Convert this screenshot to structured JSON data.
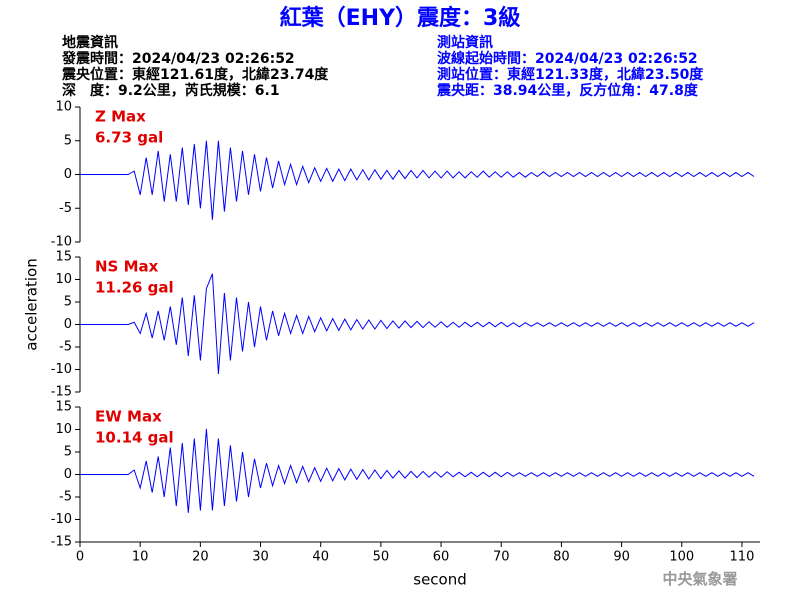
{
  "header": {
    "title": "紅葉（EHY）震度：3級",
    "left": [
      "地震資訊",
      "發震時間：2024/04/23 02:26:52",
      "震央位置：東經121.61度，北緯23.74度",
      "深　度：9.2公里，芮氏規模：6.1"
    ],
    "right": [
      "測站資訊",
      "波線起始時間：2024/04/23 02:26:52",
      "測站位置：東經121.33度，北緯23.50度",
      "震央距：38.94公里，反方位角：47.8度"
    ],
    "footer": "中央氣象署"
  },
  "chart_data": [
    {
      "type": "line",
      "color": "#0000ff",
      "annotation_color": "#e00000",
      "annotations": [
        "Z Max",
        "6.73 gal"
      ],
      "xlim": [
        0,
        113
      ],
      "ylim": [
        -10,
        10
      ],
      "yticks": [
        -10,
        -5,
        0,
        5,
        10
      ],
      "x": [
        0,
        1,
        2,
        3,
        4,
        5,
        6,
        7,
        8,
        9,
        10,
        11,
        12,
        13,
        14,
        15,
        16,
        17,
        18,
        19,
        20,
        21,
        22,
        23,
        24,
        25,
        26,
        27,
        28,
        29,
        30,
        31,
        32,
        33,
        34,
        35,
        36,
        37,
        38,
        39,
        40,
        41,
        42,
        43,
        44,
        45,
        46,
        47,
        48,
        49,
        50,
        51,
        52,
        53,
        54,
        55,
        56,
        57,
        58,
        59,
        60,
        61,
        62,
        63,
        64,
        65,
        66,
        67,
        68,
        69,
        70,
        71,
        72,
        73,
        74,
        75,
        76,
        77,
        78,
        79,
        80,
        81,
        82,
        83,
        84,
        85,
        86,
        87,
        88,
        89,
        90,
        91,
        92,
        93,
        94,
        95,
        96,
        97,
        98,
        99,
        100,
        101,
        102,
        103,
        104,
        105,
        106,
        107,
        108,
        109,
        110,
        111,
        112
      ],
      "values": [
        0,
        0,
        0,
        0,
        0,
        0,
        0,
        0,
        0,
        0.5,
        -3,
        2.5,
        -3,
        3.5,
        -4,
        3,
        -4,
        4,
        -4.5,
        4.5,
        -5,
        5,
        -6.7,
        5,
        -5.5,
        4,
        -4,
        3.5,
        -3,
        3,
        -2.5,
        2.5,
        -2,
        2,
        -1.5,
        1.5,
        -1.5,
        1.2,
        -1.2,
        1,
        -1,
        0.9,
        -1,
        0.8,
        -0.9,
        0.8,
        -0.8,
        0.7,
        -0.8,
        0.7,
        -0.7,
        0.6,
        -0.7,
        0.6,
        -0.6,
        0.6,
        -0.5,
        0.6,
        -0.5,
        0.5,
        -0.5,
        0.5,
        -0.5,
        0.4,
        -0.5,
        0.4,
        -0.4,
        0.5,
        -0.4,
        0.4,
        -0.4,
        0.4,
        -0.4,
        0.3,
        -0.4,
        0.3,
        -0.3,
        0.4,
        -0.3,
        0.3,
        -0.3,
        0.3,
        -0.3,
        0.3,
        -0.3,
        0.3,
        -0.3,
        0.3,
        -0.3,
        0.3,
        -0.3,
        0.3,
        -0.3,
        0.3,
        -0.3,
        0.3,
        -0.3,
        0.3,
        -0.3,
        0.3,
        -0.3,
        0.3,
        -0.3,
        0.3,
        -0.3,
        0.3,
        -0.3,
        0.3,
        -0.3,
        0.3,
        -0.3,
        0.3,
        -0.3
      ]
    },
    {
      "type": "line",
      "color": "#0000ff",
      "annotation_color": "#e00000",
      "annotations": [
        "NS Max",
        "11.26 gal"
      ],
      "y_label": "acceleration",
      "xlim": [
        0,
        113
      ],
      "ylim": [
        -15,
        15
      ],
      "yticks": [
        -15,
        -10,
        -5,
        0,
        5,
        10,
        15
      ],
      "x": [
        0,
        1,
        2,
        3,
        4,
        5,
        6,
        7,
        8,
        9,
        10,
        11,
        12,
        13,
        14,
        15,
        16,
        17,
        18,
        19,
        20,
        21,
        22,
        23,
        24,
        25,
        26,
        27,
        28,
        29,
        30,
        31,
        32,
        33,
        34,
        35,
        36,
        37,
        38,
        39,
        40,
        41,
        42,
        43,
        44,
        45,
        46,
        47,
        48,
        49,
        50,
        51,
        52,
        53,
        54,
        55,
        56,
        57,
        58,
        59,
        60,
        61,
        62,
        63,
        64,
        65,
        66,
        67,
        68,
        69,
        70,
        71,
        72,
        73,
        74,
        75,
        76,
        77,
        78,
        79,
        80,
        81,
        82,
        83,
        84,
        85,
        86,
        87,
        88,
        89,
        90,
        91,
        92,
        93,
        94,
        95,
        96,
        97,
        98,
        99,
        100,
        101,
        102,
        103,
        104,
        105,
        106,
        107,
        108,
        109,
        110,
        111,
        112
      ],
      "values": [
        0,
        0,
        0,
        0,
        0,
        0,
        0,
        0,
        0,
        0.5,
        -2,
        2.5,
        -3,
        3,
        -3.5,
        4,
        -4.5,
        6,
        -7,
        6.5,
        -8,
        8,
        11.26,
        -11,
        7,
        -8,
        6,
        -6,
        5,
        -5,
        4,
        -3.5,
        3,
        -2.5,
        2.5,
        -2,
        2,
        -2,
        1.8,
        -1.6,
        1.5,
        -1.4,
        1.3,
        -1.3,
        1.2,
        -1.2,
        1.1,
        -1,
        1,
        -1,
        0.9,
        -0.9,
        0.8,
        -0.8,
        0.8,
        -0.7,
        0.7,
        -0.7,
        0.6,
        -0.6,
        0.6,
        -0.6,
        0.5,
        -0.6,
        0.5,
        -0.5,
        0.5,
        -0.5,
        0.5,
        -0.5,
        0.5,
        -0.5,
        0.4,
        -0.5,
        0.4,
        -0.4,
        0.4,
        -0.4,
        0.4,
        -0.4,
        0.4,
        -0.4,
        0.4,
        -0.4,
        0.4,
        -0.4,
        0.4,
        -0.4,
        0.4,
        -0.4,
        0.4,
        -0.4,
        0.4,
        -0.4,
        0.4,
        -0.4,
        0.4,
        -0.4,
        0.4,
        -0.4,
        0.4,
        -0.4,
        0.4,
        -0.4,
        0.4,
        -0.4,
        0.4,
        -0.4,
        0.4,
        -0.4,
        0.4,
        -0.4,
        0.4
      ]
    },
    {
      "type": "line",
      "color": "#0000ff",
      "annotation_color": "#e00000",
      "annotations": [
        "EW Max",
        "10.14 gal"
      ],
      "x_label": "second",
      "xlim": [
        0,
        113
      ],
      "ylim": [
        -15,
        15
      ],
      "yticks": [
        -15,
        -10,
        -5,
        0,
        5,
        10,
        15
      ],
      "xticks": [
        0,
        10,
        20,
        30,
        40,
        50,
        60,
        70,
        80,
        90,
        100,
        110
      ],
      "x": [
        0,
        1,
        2,
        3,
        4,
        5,
        6,
        7,
        8,
        9,
        10,
        11,
        12,
        13,
        14,
        15,
        16,
        17,
        18,
        19,
        20,
        21,
        22,
        23,
        24,
        25,
        26,
        27,
        28,
        29,
        30,
        31,
        32,
        33,
        34,
        35,
        36,
        37,
        38,
        39,
        40,
        41,
        42,
        43,
        44,
        45,
        46,
        47,
        48,
        49,
        50,
        51,
        52,
        53,
        54,
        55,
        56,
        57,
        58,
        59,
        60,
        61,
        62,
        63,
        64,
        65,
        66,
        67,
        68,
        69,
        70,
        71,
        72,
        73,
        74,
        75,
        76,
        77,
        78,
        79,
        80,
        81,
        82,
        83,
        84,
        85,
        86,
        87,
        88,
        89,
        90,
        91,
        92,
        93,
        94,
        95,
        96,
        97,
        98,
        99,
        100,
        101,
        102,
        103,
        104,
        105,
        106,
        107,
        108,
        109,
        110,
        111,
        112
      ],
      "values": [
        0,
        0,
        0,
        0,
        0,
        0,
        0,
        0,
        0,
        1,
        -3,
        3,
        -4,
        4,
        -5,
        6,
        -7,
        7,
        -8.5,
        8,
        -8,
        10.14,
        -8,
        8,
        -7,
        6.5,
        -6,
        5,
        -5,
        3.5,
        -3,
        2.5,
        -2.5,
        2,
        -2,
        2,
        -1.8,
        1.8,
        -1.6,
        1.5,
        -1.5,
        1.4,
        -1.4,
        1.3,
        -1.2,
        1.2,
        -1.1,
        1.1,
        -1,
        1,
        -0.9,
        0.9,
        -0.8,
        0.8,
        -0.8,
        0.7,
        -0.7,
        0.7,
        -0.6,
        0.6,
        -0.6,
        0.6,
        -0.5,
        0.5,
        -0.5,
        0.5,
        -0.5,
        0.5,
        -0.5,
        0.5,
        -0.5,
        0.5,
        -0.4,
        0.4,
        -0.4,
        0.4,
        -0.4,
        0.4,
        -0.4,
        0.4,
        -0.4,
        0.4,
        -0.4,
        0.4,
        -0.4,
        0.4,
        -0.4,
        0.4,
        -0.4,
        0.4,
        -0.4,
        0.4,
        -0.4,
        0.4,
        -0.4,
        0.4,
        -0.4,
        0.4,
        -0.4,
        0.4,
        -0.4,
        0.4,
        -0.4,
        0.4,
        -0.4,
        0.4,
        -0.4,
        0.4,
        -0.4,
        0.4,
        -0.4,
        0.4,
        -0.4
      ]
    }
  ]
}
